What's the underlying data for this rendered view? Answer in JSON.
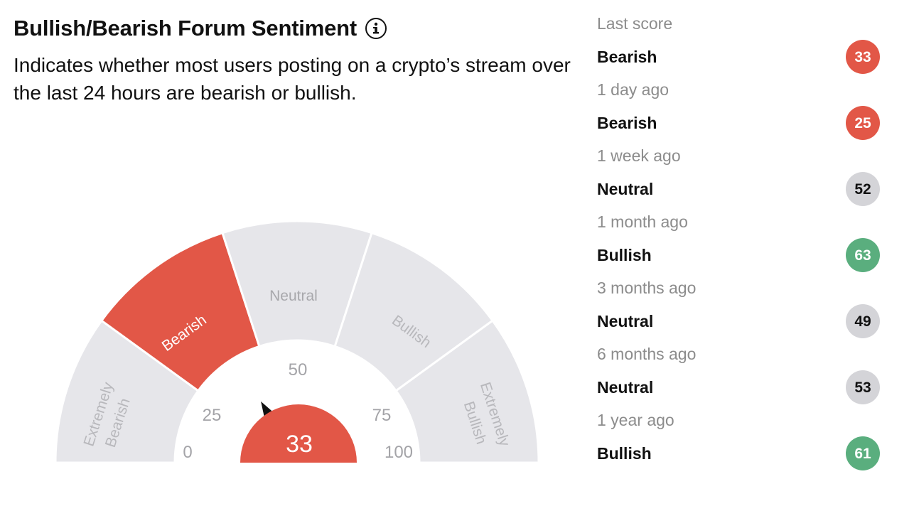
{
  "header": {
    "title": "Bullish/Bearish Forum Sentiment",
    "info_icon": "info-icon",
    "subtitle": "Indicates whether most users posting on a crypto’s stream over the last 24 hours are bearish or bullish."
  },
  "gauge": {
    "current_score": "33",
    "current_value": 33,
    "active_segment": "Bearish",
    "segments": [
      "Extremely Bearish",
      "Bearish",
      "Neutral",
      "Bullish",
      "Extremely Bullish"
    ],
    "segment_labels": {
      "extremely_bearish_1": "Extremely",
      "extremely_bearish_2": "Bearish",
      "bearish": "Bearish",
      "neutral": "Neutral",
      "bullish": "Bullish",
      "extremely_bullish_1": "Extremely",
      "extremely_bullish_2": "Bullish"
    },
    "ticks": {
      "t0": "0",
      "t25": "25",
      "t50": "50",
      "t75": "75",
      "t100": "100"
    },
    "colors": {
      "bearish": "#e25747",
      "neutral_gray": "#e6e6ea",
      "muted_text": "#9a9a9a",
      "needle": "#111111"
    }
  },
  "history": [
    {
      "period": "Last score",
      "label": "Bearish",
      "score": "33",
      "color": "#e25747",
      "text_color": "#ffffff"
    },
    {
      "period": "1 day ago",
      "label": "Bearish",
      "score": "25",
      "color": "#e25747",
      "text_color": "#ffffff"
    },
    {
      "period": "1 week ago",
      "label": "Neutral",
      "score": "52",
      "color": "#d4d4d8",
      "text_color": "#111111"
    },
    {
      "period": "1 month ago",
      "label": "Bullish",
      "score": "63",
      "color": "#5aae7e",
      "text_color": "#ffffff"
    },
    {
      "period": "3 months ago",
      "label": "Neutral",
      "score": "49",
      "color": "#d4d4d8",
      "text_color": "#111111"
    },
    {
      "period": "6 months ago",
      "label": "Neutral",
      "score": "53",
      "color": "#d4d4d8",
      "text_color": "#111111"
    },
    {
      "period": "1 year ago",
      "label": "Bullish",
      "score": "61",
      "color": "#5aae7e",
      "text_color": "#ffffff"
    }
  ]
}
